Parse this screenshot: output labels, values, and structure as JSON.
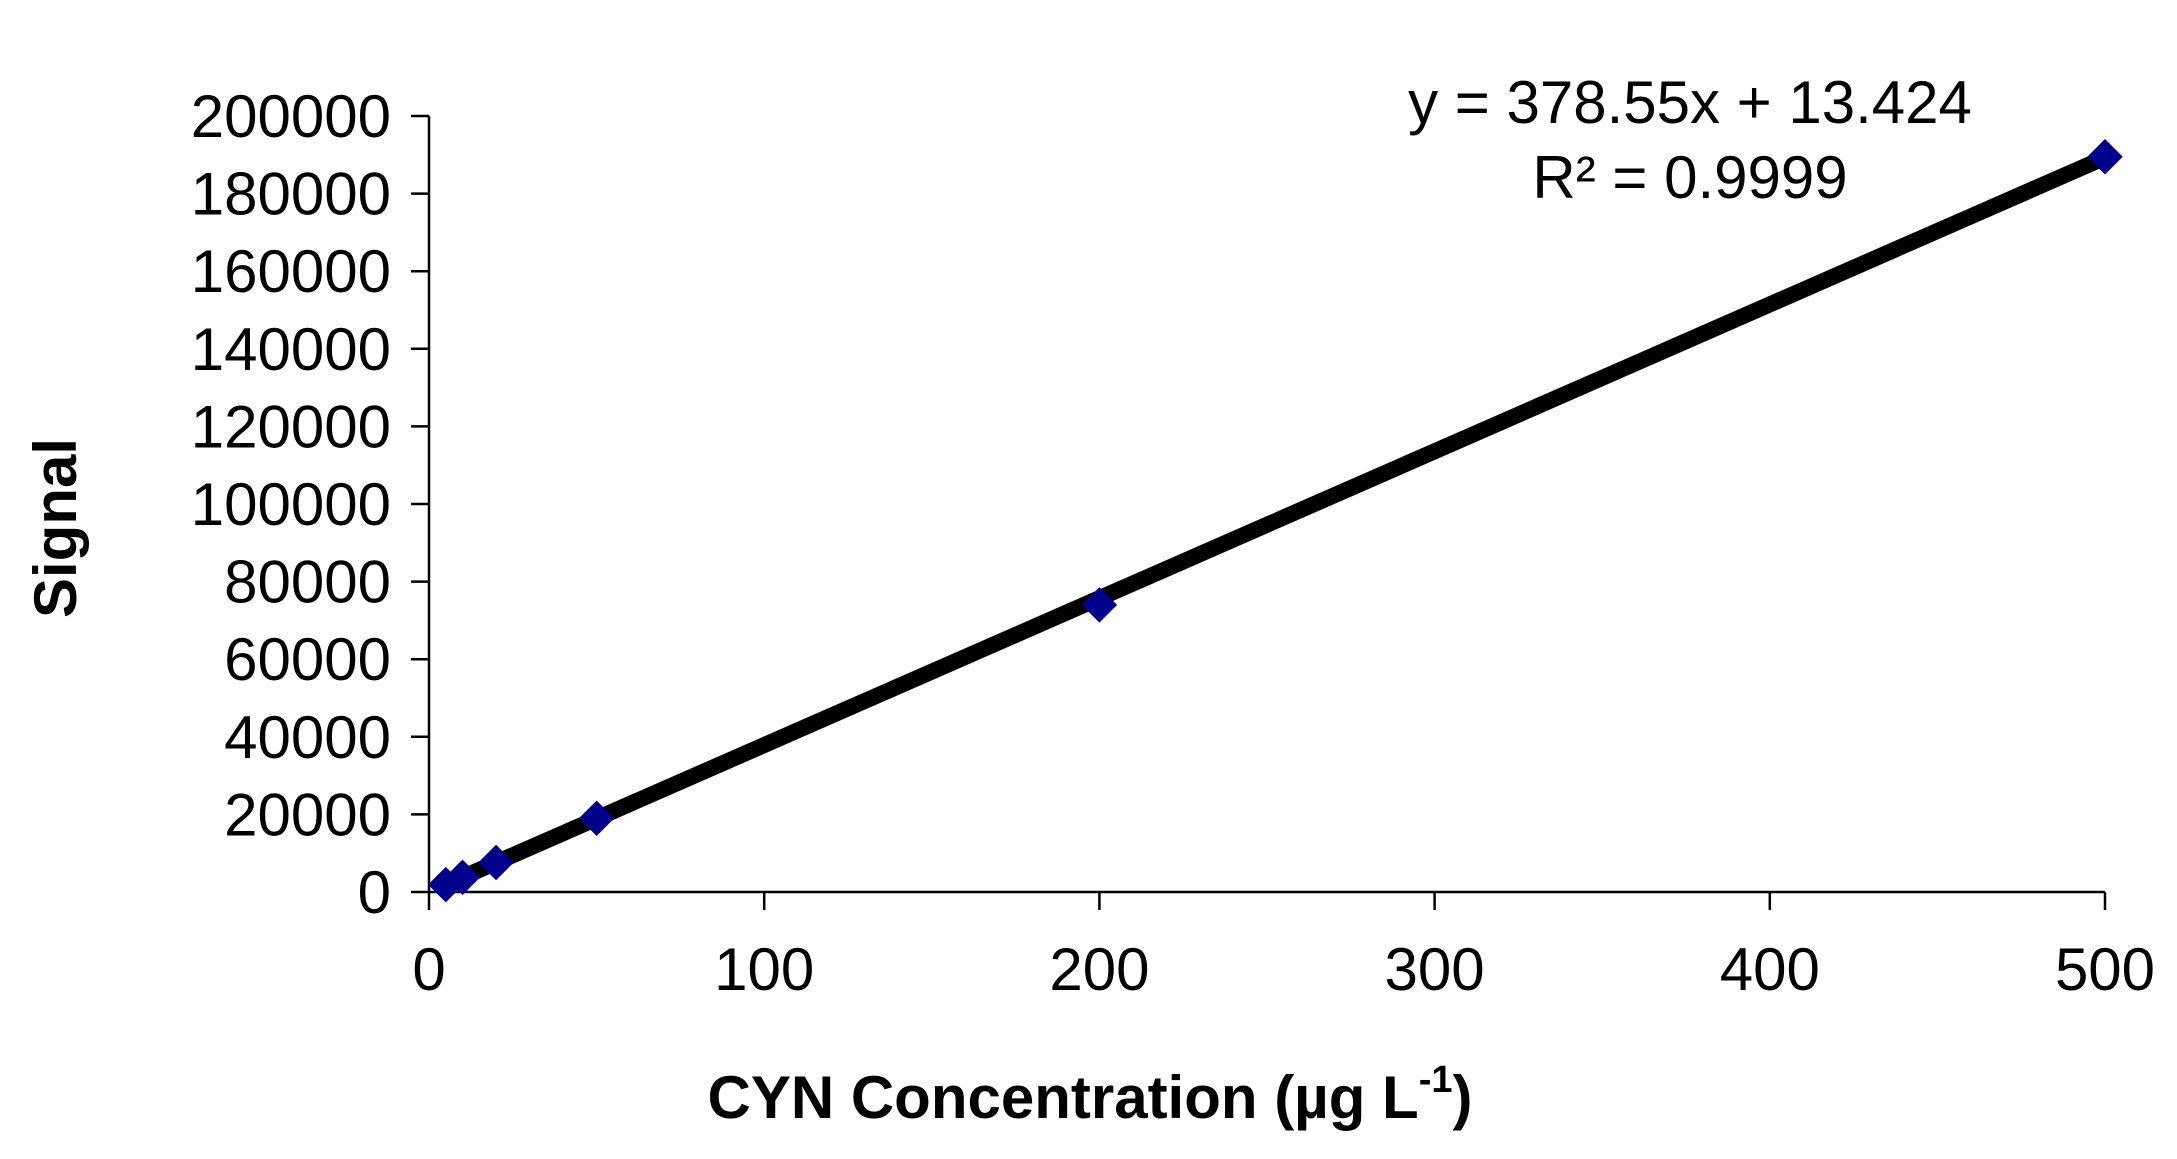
{
  "chart_data": {
    "type": "scatter",
    "title": "",
    "xlabel": "CYN Concentration (µg L",
    "xlabel_superscript": "-1",
    "xlabel_suffix": ")",
    "ylabel": "Signal",
    "xlim": [
      0,
      500
    ],
    "ylim": [
      0,
      200000
    ],
    "x_ticks": [
      0,
      100,
      200,
      300,
      400,
      500
    ],
    "y_ticks": [
      0,
      20000,
      40000,
      60000,
      80000,
      100000,
      120000,
      140000,
      160000,
      180000,
      200000
    ],
    "x_tick_labels": [
      "0",
      "100",
      "200",
      "300",
      "400",
      "500"
    ],
    "y_tick_labels": [
      "0",
      "20000",
      "40000",
      "60000",
      "80000",
      "100000",
      "120000",
      "140000",
      "160000",
      "180000",
      "200000"
    ],
    "grid": false,
    "legend": "none",
    "series": [
      {
        "marker": "diamond",
        "color": "#00008B",
        "points": [
          {
            "x": 5,
            "y": 1900
          },
          {
            "x": 10,
            "y": 3800
          },
          {
            "x": 20,
            "y": 7600
          },
          {
            "x": 50,
            "y": 19000
          },
          {
            "x": 200,
            "y": 74000
          },
          {
            "x": 500,
            "y": 189500
          }
        ]
      }
    ],
    "trendline": {
      "type": "linear",
      "slope": 378.55,
      "intercept": 13.424,
      "x_range": [
        5,
        500
      ],
      "color": "#000000",
      "equation_label": "y = 378.55x + 13.424",
      "r2_label": "R² = 0.9999"
    }
  }
}
